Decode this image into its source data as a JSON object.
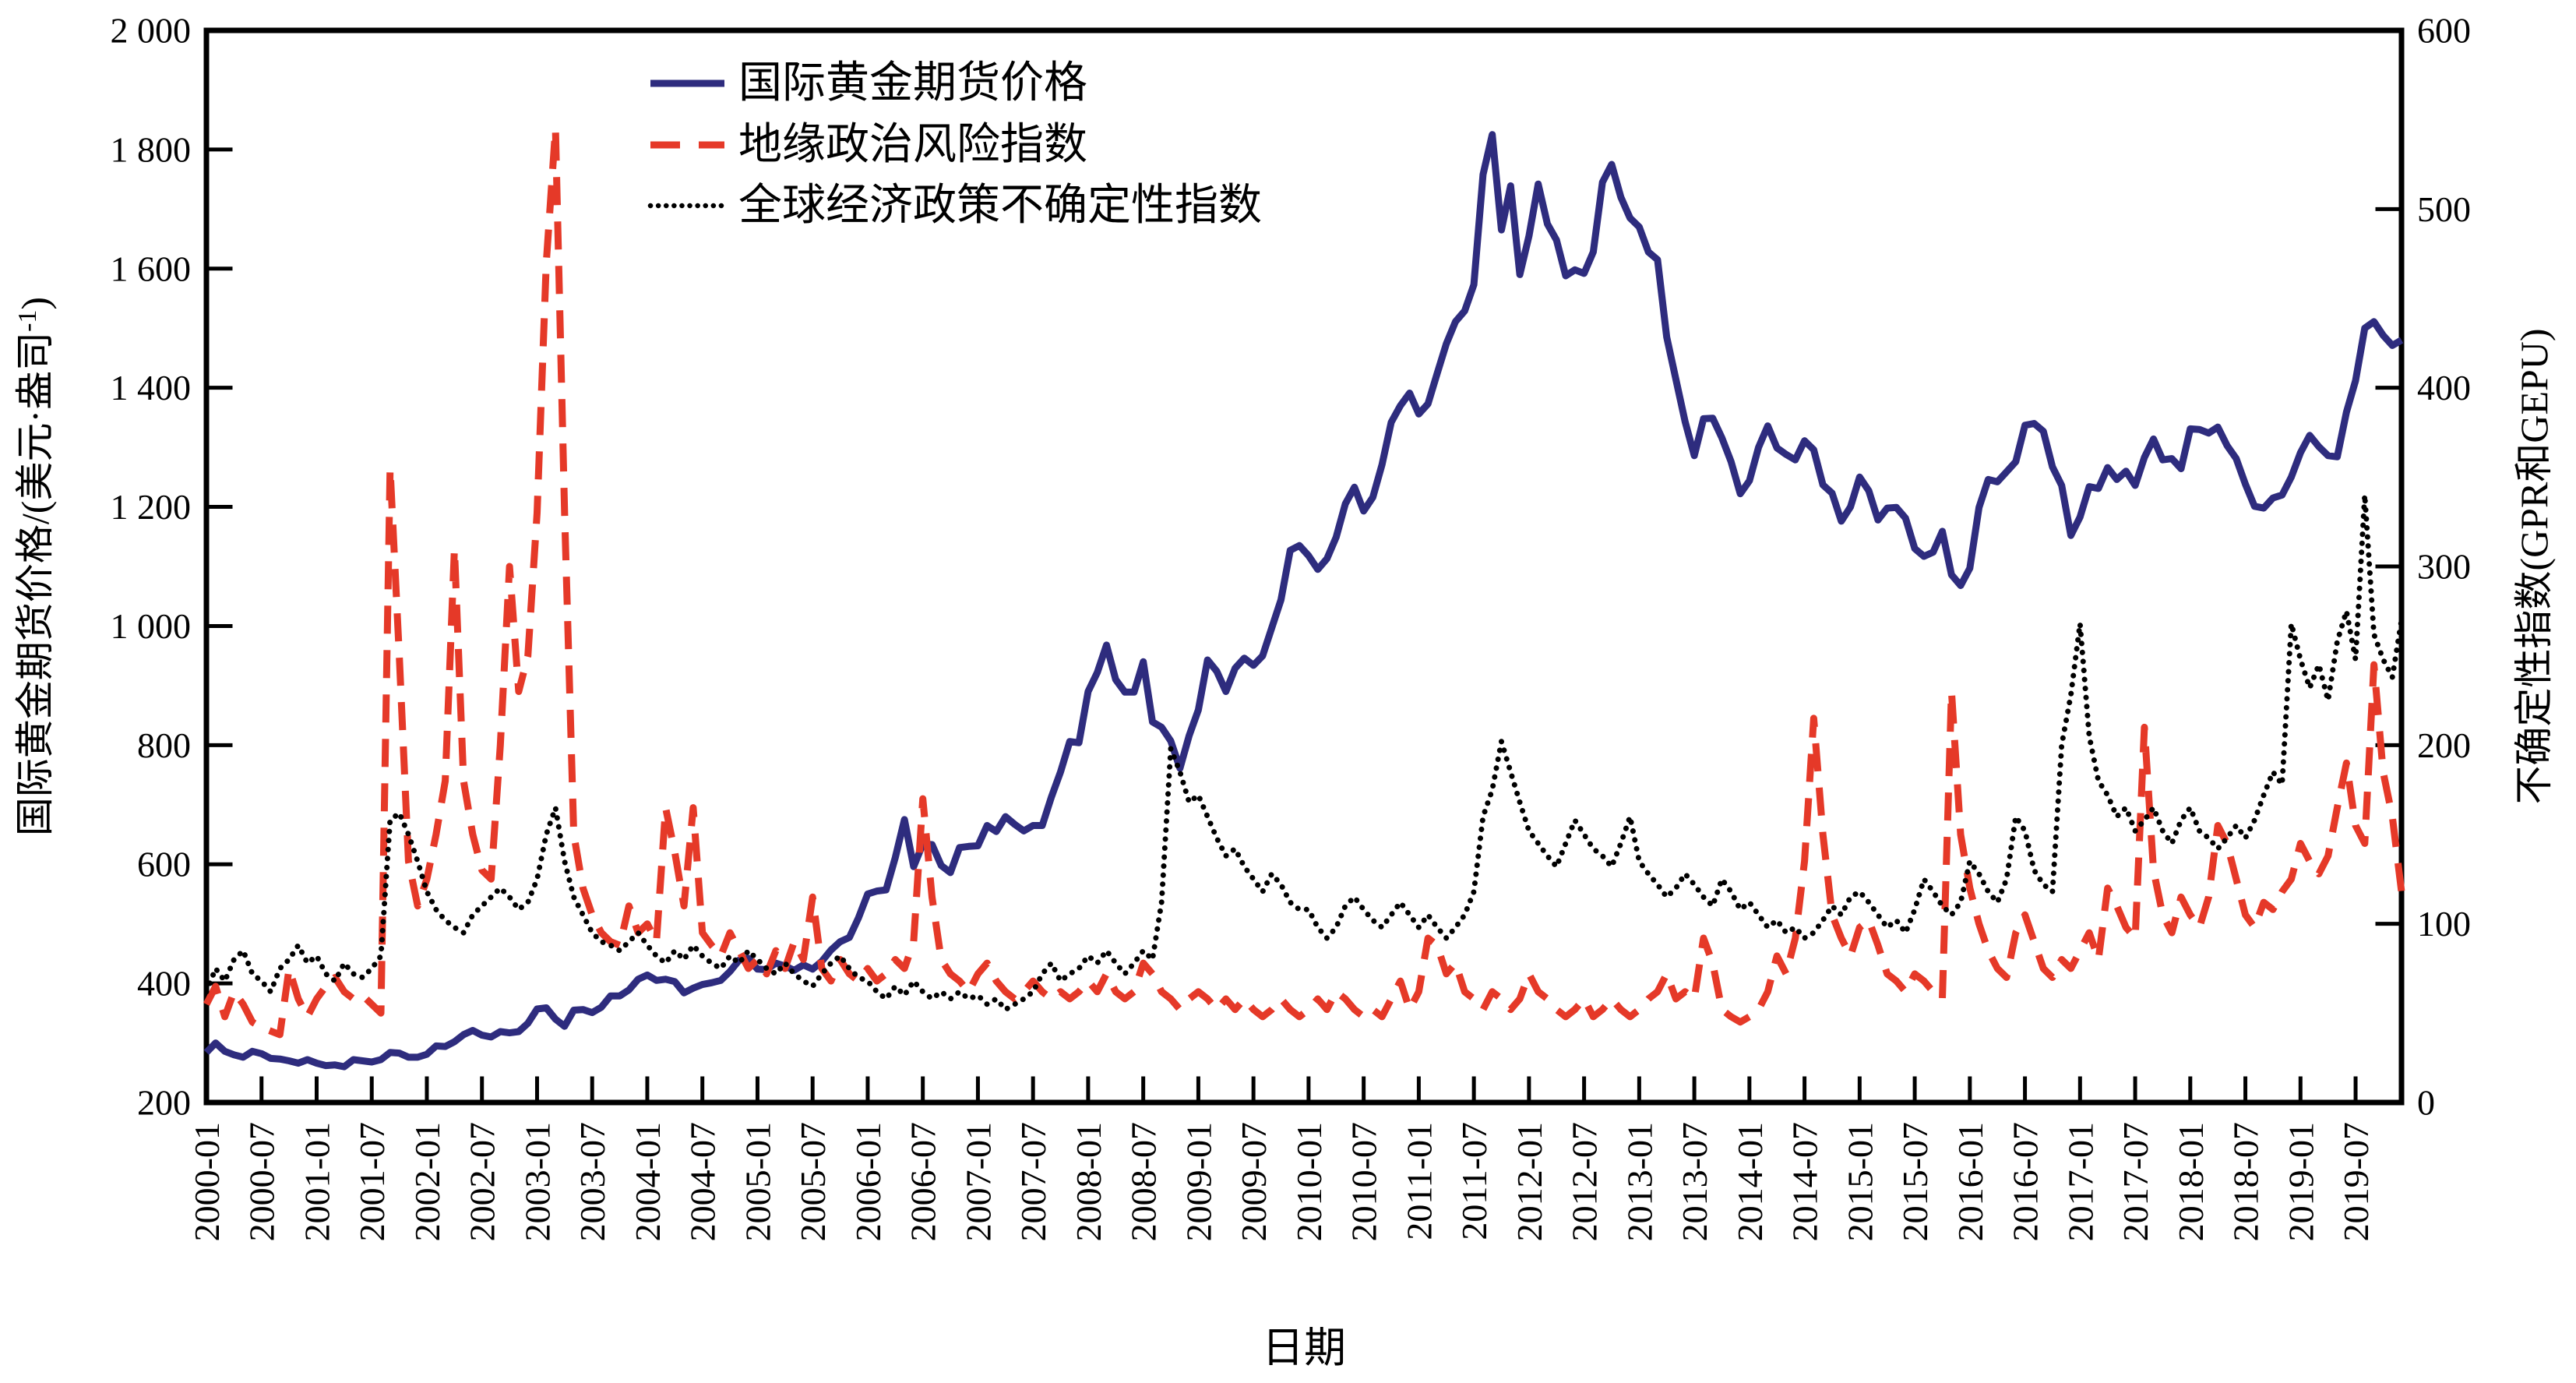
{
  "figure": {
    "background": "#ffffff",
    "axis_color": "#000000",
    "xlabel": "日期",
    "left_axis": {
      "title_main": "国际黄金期货价格/(美元·盎司",
      "title_sup": "-1",
      "title_close": ")",
      "min": 200,
      "max": 2000,
      "tick_step": 200,
      "tick_labels": [
        "2 000",
        "1 800",
        "1 600",
        "1 400",
        "1 200",
        "1 000",
        "800",
        "600",
        "400",
        "200"
      ]
    },
    "right_axis": {
      "title": "不确定性指数(GPR和GEPU)",
      "min": 0,
      "max": 600,
      "tick_step": 100,
      "tick_labels": [
        "600",
        "500",
        "400",
        "300",
        "200",
        "100",
        "0"
      ]
    },
    "x_tick_labels": [
      "2000-01",
      "2000-07",
      "2001-01",
      "2001-07",
      "2002-01",
      "2002-07",
      "2003-01",
      "2003-07",
      "2004-01",
      "2004-07",
      "2005-01",
      "2005-07",
      "2006-01",
      "2006-07",
      "2007-01",
      "2007-07",
      "2008-01",
      "2008-07",
      "2009-01",
      "2009-07",
      "2010-01",
      "2010-07",
      "2011-01",
      "2011-07",
      "2012-01",
      "2012-07",
      "2013-01",
      "2013-07",
      "2014-01",
      "2014-07",
      "2015-01",
      "2015-07",
      "2016-01",
      "2016-07",
      "2017-01",
      "2017-07",
      "2018-01",
      "2018-07",
      "2019-01",
      "2019-07"
    ]
  },
  "chart_data": {
    "type": "line",
    "x_monthly_start": "2000-01",
    "x_monthly_end": "2019-12",
    "n_months": 240,
    "x_tick_every_months": 6,
    "grid": false,
    "legend_position": "upper-left-inside",
    "left_ylim": [
      200,
      2000
    ],
    "right_ylim": [
      0,
      600
    ],
    "series": [
      {
        "name": "国际黄金期货价格",
        "axis": "left",
        "color": "#2e2c7e",
        "style": "solid",
        "values": [
          284,
          300,
          286,
          280,
          276,
          286,
          282,
          274,
          273,
          270,
          266,
          272,
          266,
          262,
          263,
          260,
          272,
          270,
          268,
          272,
          284,
          283,
          276,
          276,
          281,
          295,
          294,
          302,
          314,
          321,
          313,
          310,
          319,
          317,
          319,
          333,
          357,
          359,
          340,
          328,
          355,
          356,
          351,
          360,
          379,
          379,
          389,
          407,
          414,
          405,
          407,
          403,
          384,
          392,
          398,
          401,
          405,
          420,
          439,
          442,
          424,
          423,
          434,
          429,
          422,
          431,
          424,
          437,
          456,
          470,
          477,
          510,
          550,
          555,
          557,
          611,
          675,
          596,
          634,
          633,
          598,
          586,
          628,
          630,
          631,
          665,
          655,
          680,
          667,
          656,
          665,
          665,
          713,
          755,
          806,
          804,
          890,
          922,
          968,
          910,
          889,
          889,
          940,
          839,
          830,
          807,
          761,
          816,
          859,
          943,
          924,
          890,
          929,
          946,
          934,
          950,
          997,
          1044,
          1127,
          1135,
          1118,
          1095,
          1113,
          1149,
          1205,
          1233,
          1193,
          1216,
          1271,
          1342,
          1370,
          1391,
          1356,
          1373,
          1424,
          1474,
          1511,
          1529,
          1573,
          1758,
          1825,
          1665,
          1739,
          1590,
          1655,
          1742,
          1675,
          1648,
          1588,
          1598,
          1592,
          1628,
          1745,
          1775,
          1720,
          1685,
          1670,
          1628,
          1615,
          1485,
          1414,
          1343,
          1286,
          1348,
          1349,
          1316,
          1276,
          1222,
          1244,
          1300,
          1336,
          1299,
          1288,
          1279,
          1311,
          1296,
          1237,
          1223,
          1176,
          1200,
          1250,
          1227,
          1178,
          1198,
          1199,
          1181,
          1130,
          1117,
          1124,
          1159,
          1086,
          1068,
          1097,
          1199,
          1246,
          1242,
          1259,
          1276,
          1337,
          1340,
          1327,
          1267,
          1236,
          1152,
          1183,
          1234,
          1231,
          1266,
          1246,
          1260,
          1236,
          1283,
          1314,
          1279,
          1281,
          1264,
          1331,
          1330,
          1324,
          1334,
          1303,
          1281,
          1238,
          1201,
          1198,
          1215,
          1220,
          1250,
          1291,
          1320,
          1301,
          1286,
          1284,
          1359,
          1412,
          1500,
          1511,
          1488,
          1471,
          1480
        ]
      },
      {
        "name": "地缘政治风险指数",
        "axis": "right",
        "color": "#e53928",
        "style": "dashed",
        "values": [
          55,
          65,
          48,
          62,
          55,
          45,
          42,
          40,
          38,
          75,
          58,
          48,
          58,
          65,
          70,
          62,
          58,
          60,
          55,
          50,
          355,
          250,
          135,
          110,
          125,
          150,
          180,
          310,
          180,
          150,
          130,
          125,
          200,
          300,
          230,
          250,
          330,
          470,
          545,
          330,
          150,
          120,
          105,
          95,
          90,
          88,
          110,
          95,
          100,
          90,
          165,
          140,
          110,
          165,
          95,
          88,
          82,
          95,
          85,
          75,
          80,
          72,
          85,
          75,
          90,
          80,
          115,
          75,
          68,
          80,
          72,
          68,
          75,
          68,
          72,
          80,
          75,
          90,
          170,
          115,
          80,
          72,
          68,
          62,
          72,
          78,
          68,
          62,
          58,
          62,
          68,
          62,
          58,
          62,
          58,
          62,
          68,
          62,
          72,
          62,
          58,
          62,
          78,
          72,
          62,
          58,
          52,
          58,
          62,
          58,
          52,
          58,
          52,
          58,
          52,
          48,
          52,
          58,
          52,
          48,
          52,
          58,
          52,
          62,
          58,
          52,
          48,
          52,
          48,
          58,
          68,
          52,
          62,
          92,
          88,
          72,
          78,
          62,
          58,
          52,
          62,
          58,
          52,
          58,
          72,
          62,
          58,
          52,
          48,
          52,
          58,
          48,
          52,
          58,
          52,
          48,
          52,
          58,
          62,
          72,
          58,
          62,
          58,
          92,
          78,
          52,
          48,
          45,
          48,
          52,
          62,
          82,
          72,
          92,
          135,
          215,
          150,
          105,
          92,
          82,
          98,
          102,
          88,
          72,
          68,
          62,
          72,
          68,
          62,
          58,
          230,
          150,
          120,
          100,
          85,
          75,
          70,
          95,
          105,
          90,
          75,
          70,
          80,
          75,
          85,
          95,
          80,
          120,
          110,
          98,
          92,
          210,
          130,
          105,
          95,
          115,
          105,
          98,
          115,
          155,
          145,
          125,
          105,
          98,
          112,
          108,
          118,
          125,
          145,
          135,
          128,
          138,
          165,
          190,
          155,
          145,
          245,
          185,
          160,
          118
        ]
      },
      {
        "name": "全球经济政策不确定性指数",
        "axis": "right",
        "color": "#000000",
        "style": "dotted",
        "values": [
          62,
          75,
          68,
          80,
          85,
          72,
          68,
          62,
          75,
          80,
          88,
          78,
          82,
          72,
          68,
          78,
          72,
          70,
          75,
          82,
          158,
          162,
          150,
          135,
          118,
          108,
          102,
          98,
          95,
          105,
          110,
          115,
          120,
          115,
          108,
          112,
          125,
          150,
          165,
          135,
          115,
          105,
          95,
          90,
          88,
          85,
          90,
          95,
          88,
          82,
          78,
          85,
          80,
          88,
          82,
          78,
          75,
          82,
          78,
          85,
          80,
          75,
          72,
          78,
          72,
          68,
          65,
          72,
          78,
          82,
          75,
          70,
          68,
          62,
          58,
          65,
          60,
          68,
          62,
          58,
          62,
          58,
          62,
          58,
          60,
          55,
          58,
          52,
          55,
          58,
          62,
          72,
          78,
          68,
          72,
          75,
          82,
          78,
          85,
          78,
          72,
          78,
          85,
          80,
          112,
          198,
          185,
          168,
          172,
          160,
          148,
          138,
          142,
          132,
          125,
          118,
          128,
          122,
          112,
          108,
          108,
          98,
          92,
          98,
          110,
          115,
          108,
          102,
          98,
          105,
          112,
          105,
          98,
          105,
          98,
          92,
          98,
          105,
          118,
          160,
          175,
          202,
          185,
          168,
          152,
          145,
          138,
          132,
          145,
          158,
          150,
          142,
          138,
          132,
          145,
          160,
          135,
          128,
          122,
          115,
          120,
          128,
          122,
          115,
          110,
          125,
          118,
          108,
          112,
          105,
          98,
          102,
          95,
          98,
          92,
          95,
          102,
          110,
          105,
          115,
          118,
          112,
          105,
          98,
          102,
          95,
          108,
          125,
          118,
          110,
          105,
          112,
          135,
          128,
          118,
          112,
          125,
          160,
          152,
          130,
          122,
          118,
          200,
          228,
          268,
          205,
          180,
          172,
          160,
          165,
          152,
          158,
          165,
          152,
          145,
          158,
          165,
          152,
          148,
          142,
          148,
          155,
          148,
          158,
          172,
          185,
          178,
          268,
          248,
          232,
          245,
          225,
          258,
          275,
          248,
          340,
          262,
          248,
          238,
          270
        ]
      }
    ]
  }
}
